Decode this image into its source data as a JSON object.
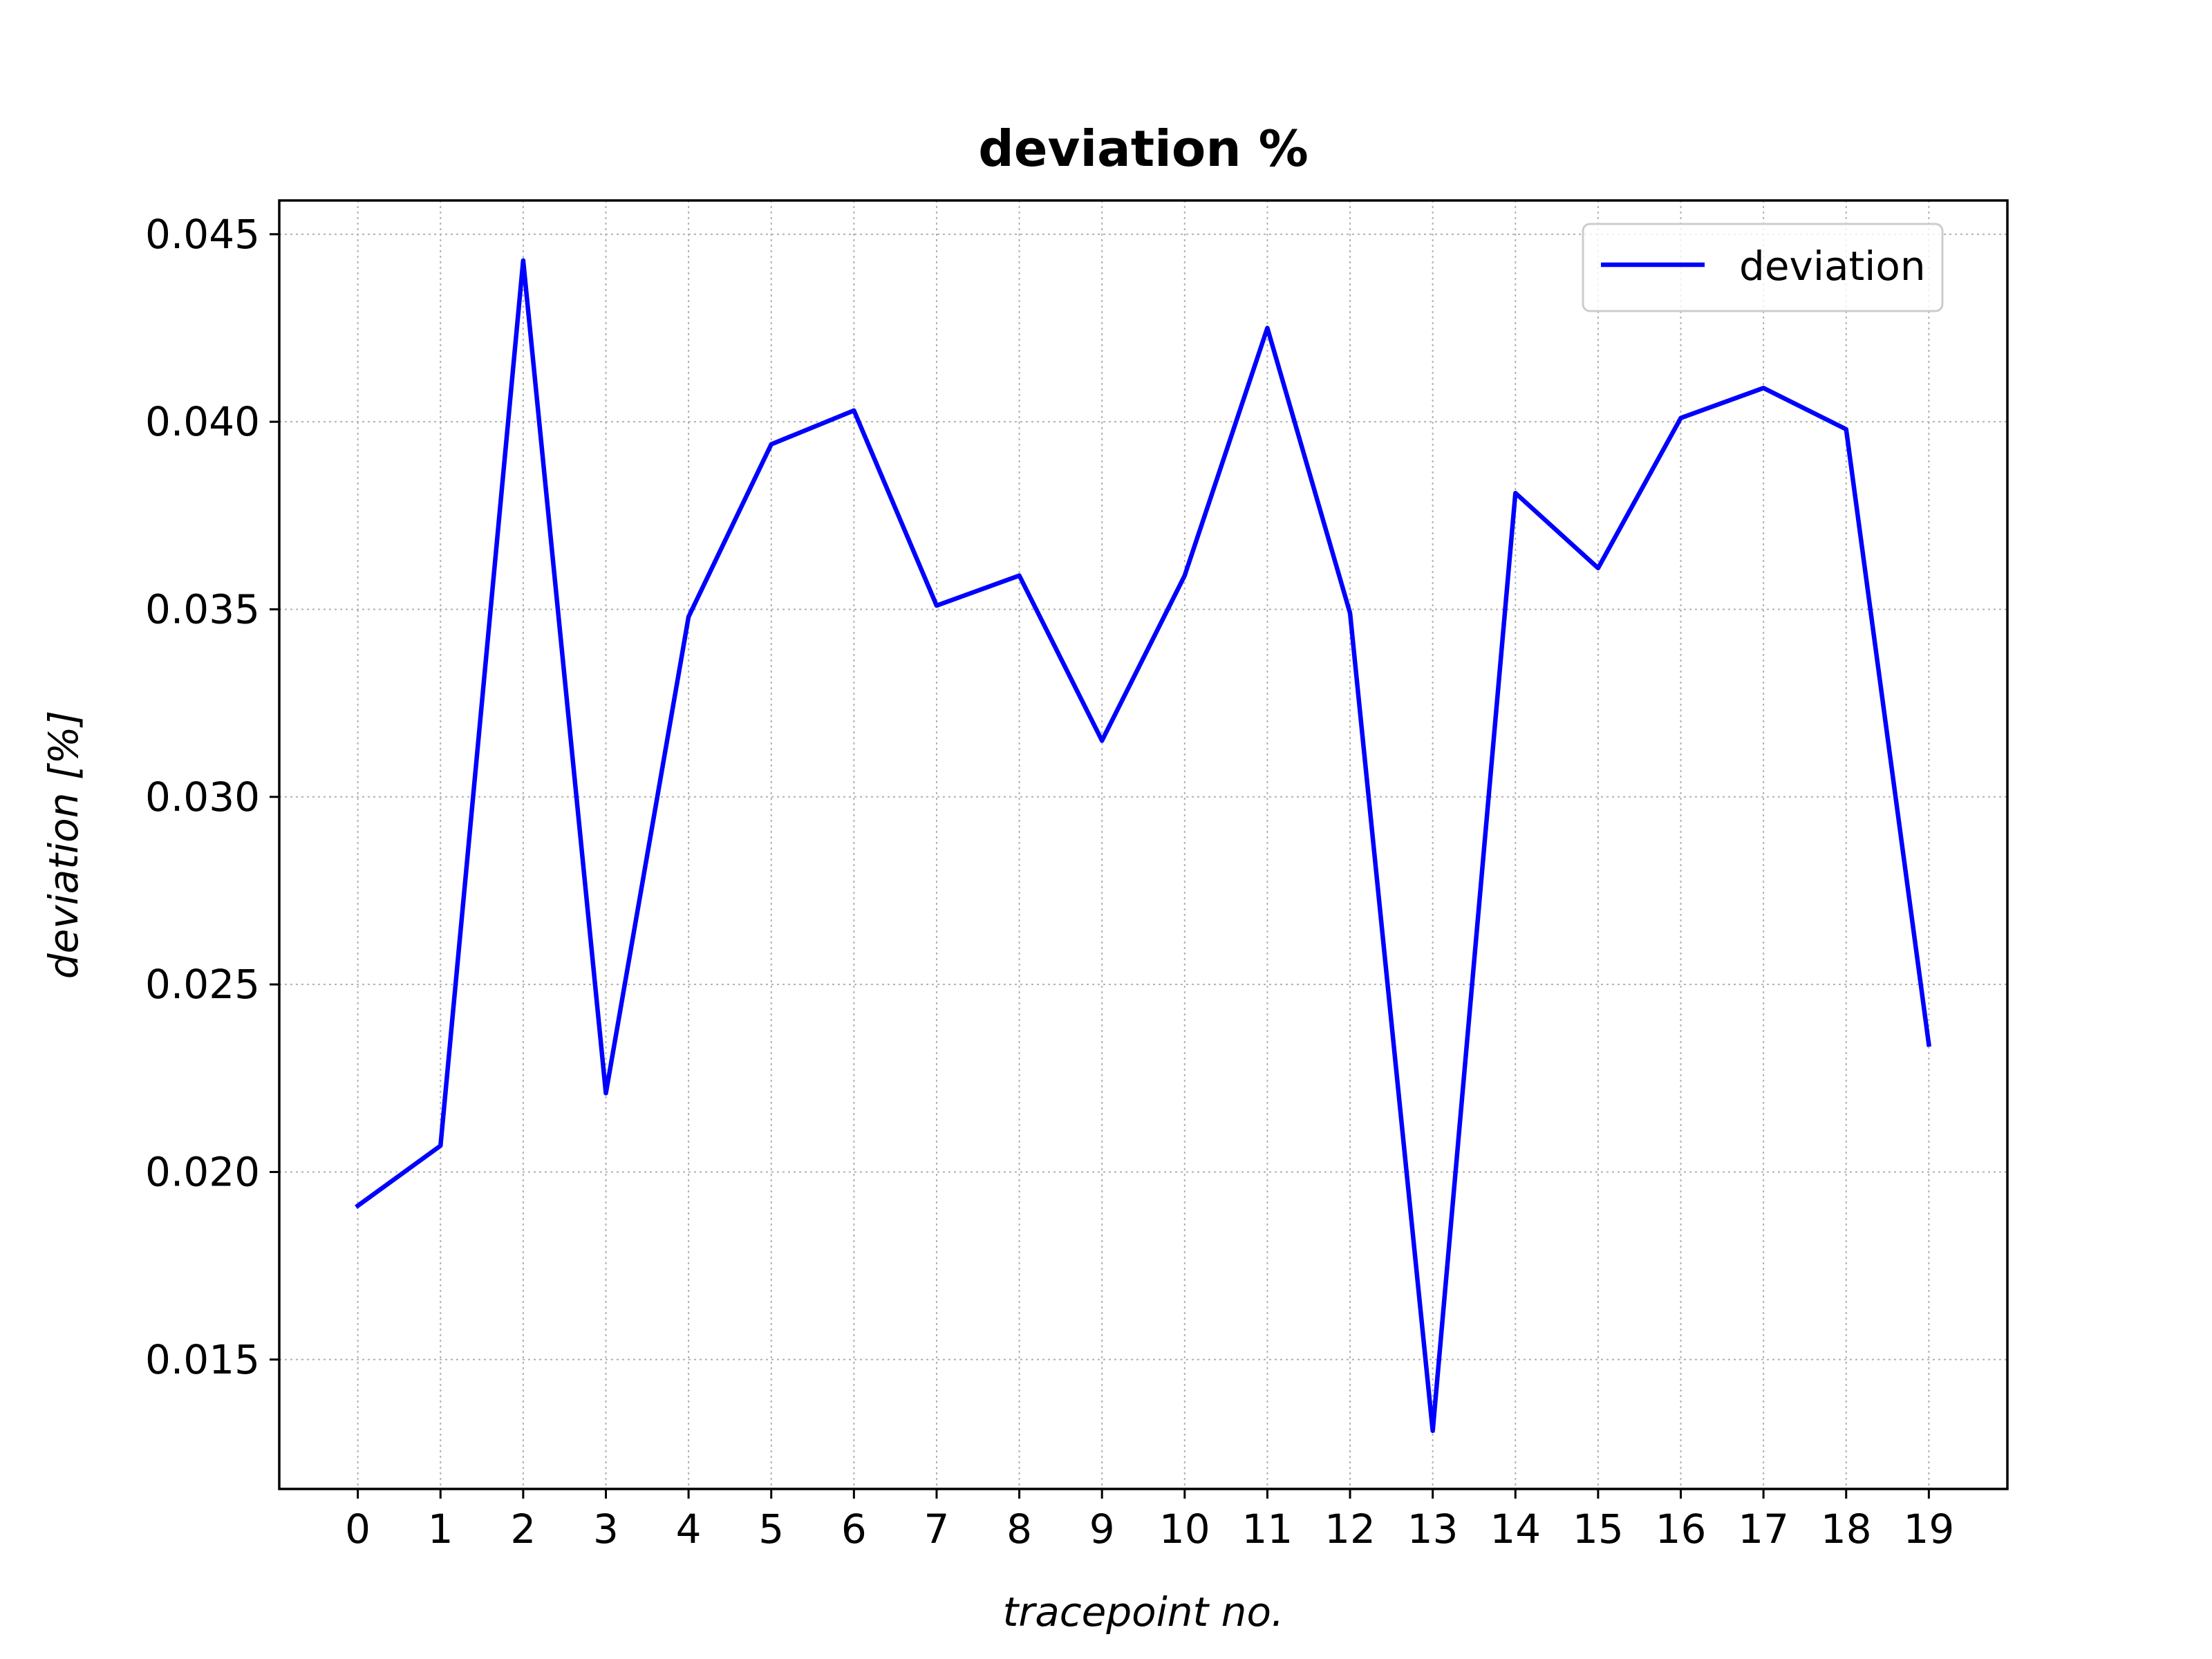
{
  "chart_data": {
    "type": "line",
    "title": "deviation %",
    "xlabel": "tracepoint no.",
    "ylabel": "deviation [%]",
    "x": [
      0,
      1,
      2,
      3,
      4,
      5,
      6,
      7,
      8,
      9,
      10,
      11,
      12,
      13,
      14,
      15,
      16,
      17,
      18,
      19
    ],
    "x_tick_labels": [
      "0",
      "1",
      "2",
      "3",
      "4",
      "5",
      "6",
      "7",
      "8",
      "9",
      "10",
      "11",
      "12",
      "13",
      "14",
      "15",
      "16",
      "17",
      "18",
      "19"
    ],
    "y_tick_values": [
      0.015,
      0.02,
      0.025,
      0.03,
      0.035,
      0.04,
      0.045
    ],
    "y_tick_labels": [
      "0.015",
      "0.020",
      "0.025",
      "0.030",
      "0.035",
      "0.040",
      "0.045"
    ],
    "xlim": [
      -0.95,
      19.95
    ],
    "ylim": [
      0.01155,
      0.0459
    ],
    "grid": true,
    "legend_position": "top-right",
    "series": [
      {
        "name": "deviation",
        "color": "#0000ff",
        "values": [
          0.0191,
          0.0207,
          0.0443,
          0.0221,
          0.0348,
          0.0394,
          0.0403,
          0.0351,
          0.0359,
          0.0315,
          0.0359,
          0.0425,
          0.0349,
          0.0131,
          0.0381,
          0.0361,
          0.0401,
          0.0409,
          0.0398,
          0.0234
        ]
      }
    ]
  }
}
